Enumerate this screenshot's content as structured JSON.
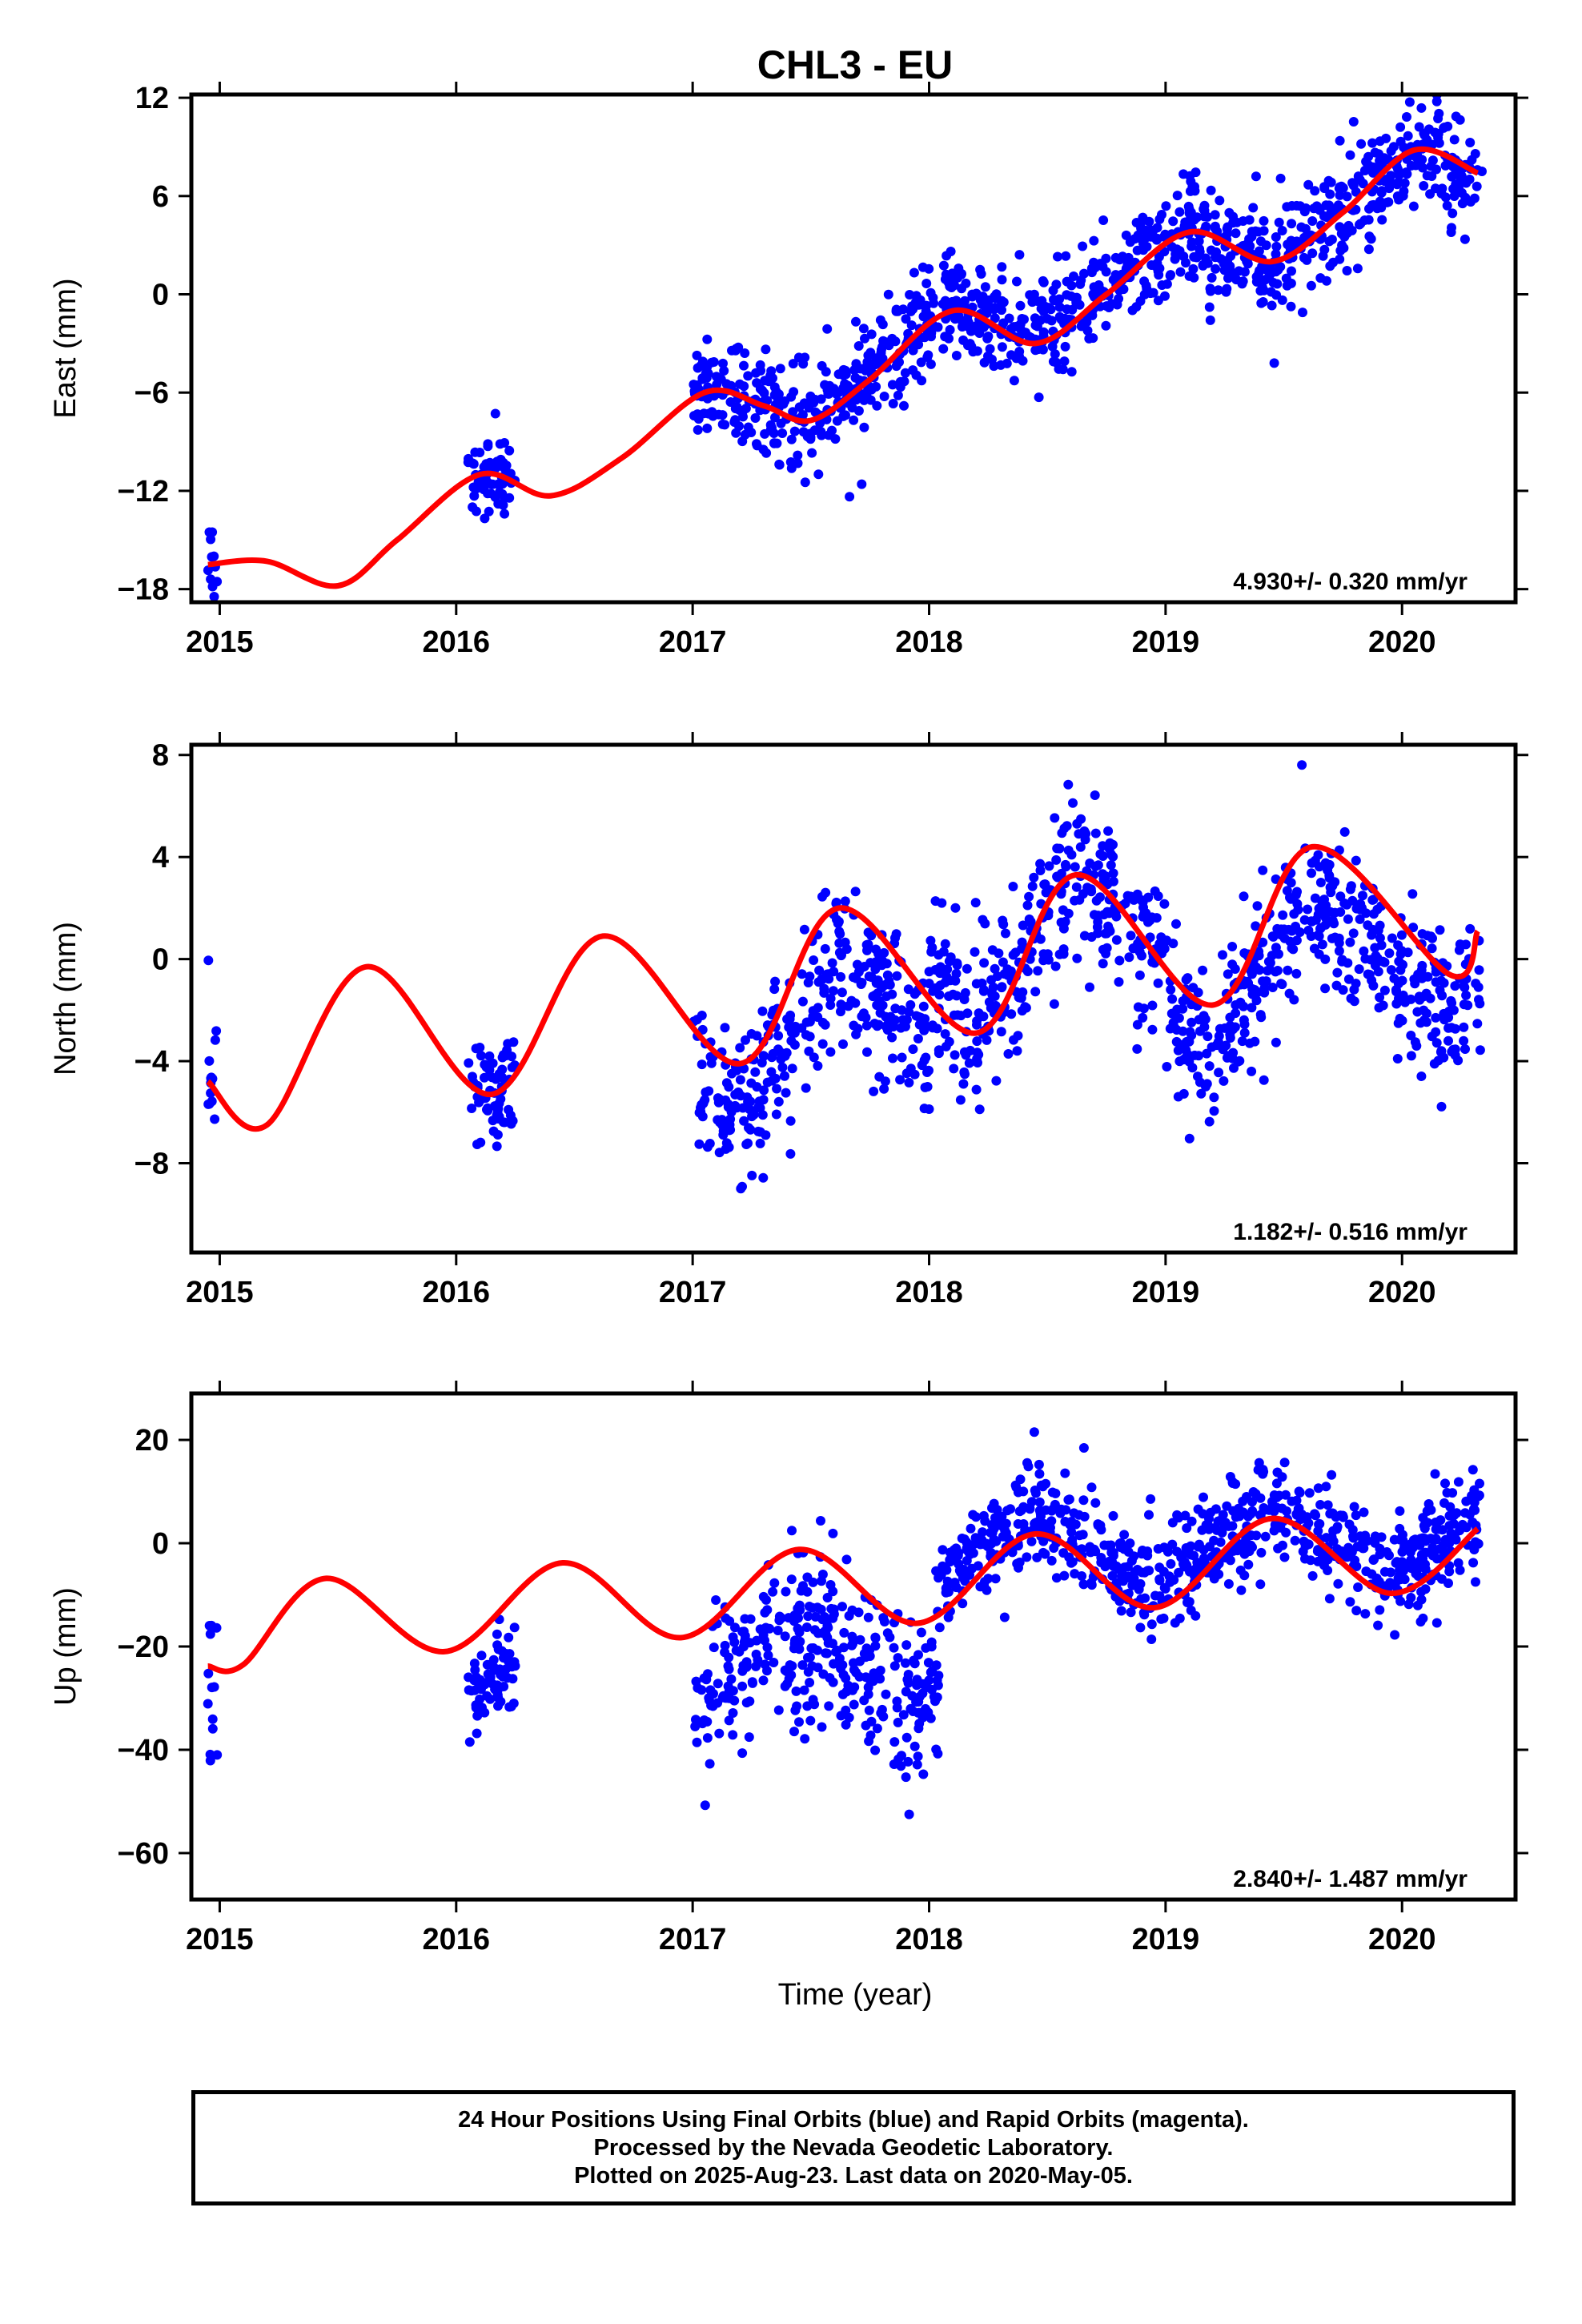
{
  "title": "CHL3 - EU",
  "xlabel": "Time (year)",
  "colors": {
    "points": "#0000ff",
    "fit": "#ff0000",
    "frame": "#000000"
  },
  "notes": [
    "24 Hour Positions Using Final Orbits (blue) and Rapid Orbits (magenta).",
    "Processed by the Nevada Geodetic Laboratory.",
    "Plotted on 2025-Aug-23. Last data on 2020-May-05."
  ],
  "chart_data": [
    {
      "type": "scatter",
      "ylabel": "East (mm)",
      "xlim": [
        2014.88,
        2020.48
      ],
      "ylim": [
        -18.8,
        12.2
      ],
      "xticks": [
        "2015",
        "2016",
        "2017",
        "2018",
        "2019",
        "2020"
      ],
      "yticks": [
        12,
        6,
        0,
        -6,
        -12,
        -18
      ],
      "rate_label": "4.930+/- 0.320 mm/yr",
      "grid": false,
      "segments": [
        {
          "t0": 2014.95,
          "t1": 2014.99,
          "approx_mean": -16.5,
          "spread": 1.5
        },
        {
          "t0": 2016.05,
          "t1": 2016.25,
          "approx_mean": -11.0,
          "spread": 1.3
        },
        {
          "t0": 2017.0,
          "t1": 2018.0,
          "approx_mean": -7.0,
          "spread": 1.6
        },
        {
          "t0": 2018.0,
          "t1": 2019.0,
          "approx_mean": -1.5,
          "spread": 1.6
        },
        {
          "t0": 2019.0,
          "t1": 2020.34,
          "approx_mean": 4.0,
          "spread": 1.6
        }
      ],
      "fit": {
        "x": [
          2014.95,
          2015.2,
          2015.5,
          2015.75,
          2016.1,
          2016.4,
          2016.7,
          2017.05,
          2017.3,
          2017.5,
          2017.75,
          2018.1,
          2018.45,
          2018.75,
          2019.1,
          2019.45,
          2019.75,
          2020.05,
          2020.32
        ],
        "y": [
          -16.5,
          -16.3,
          -17.8,
          -15.0,
          -11.0,
          -12.3,
          -10.0,
          -6.0,
          -6.8,
          -7.7,
          -5.2,
          -1.0,
          -3.0,
          0.0,
          3.8,
          2.0,
          5.0,
          8.8,
          7.4
        ]
      }
    },
    {
      "type": "scatter",
      "ylabel": "North (mm)",
      "xlim": [
        2014.88,
        2020.48
      ],
      "ylim": [
        -11.5,
        8.4
      ],
      "xticks": [
        "2015",
        "2016",
        "2017",
        "2018",
        "2019",
        "2020"
      ],
      "yticks": [
        8,
        4,
        0,
        -4,
        -8
      ],
      "rate_label": "1.182+/- 0.516 mm/yr",
      "grid": false,
      "segments": [
        {
          "t0": 2014.95,
          "t1": 2014.99,
          "approx_mean": -5.0,
          "spread": 1.4
        },
        {
          "t0": 2016.05,
          "t1": 2016.25,
          "approx_mean": -6.0,
          "spread": 1.2
        },
        {
          "t0": 2017.0,
          "t1": 2018.0,
          "approx_mean": -3.0,
          "spread": 1.5
        },
        {
          "t0": 2018.0,
          "t1": 2019.0,
          "approx_mean": 2.0,
          "spread": 1.5
        },
        {
          "t0": 2019.0,
          "t1": 2020.34,
          "approx_mean": 1.0,
          "spread": 1.5
        }
      ],
      "fit": {
        "x": [
          2014.95,
          2015.2,
          2015.62,
          2016.15,
          2016.62,
          2017.2,
          2017.62,
          2018.2,
          2018.62,
          2019.2,
          2019.62,
          2020.2,
          2020.32
        ],
        "y": [
          -4.8,
          -6.5,
          -0.3,
          -5.3,
          0.9,
          -4.1,
          2.0,
          -2.9,
          3.3,
          -1.8,
          4.4,
          -0.6,
          1.1
        ]
      }
    },
    {
      "type": "scatter",
      "ylabel": "Up (mm)",
      "xlim": [
        2014.88,
        2020.48
      ],
      "ylim": [
        -69.0,
        29.0
      ],
      "xticks": [
        "2015",
        "2016",
        "2017",
        "2018",
        "2019",
        "2020"
      ],
      "yticks": [
        20,
        0,
        -20,
        -40,
        -60
      ],
      "rate_label": "2.840+/- 1.487 mm/yr",
      "grid": false,
      "segments": [
        {
          "t0": 2014.95,
          "t1": 2014.99,
          "approx_mean": -35.0,
          "spread": 10.0
        },
        {
          "t0": 2016.05,
          "t1": 2016.25,
          "approx_mean": -36.0,
          "spread": 4.0
        },
        {
          "t0": 2017.0,
          "t1": 2018.05,
          "approx_mean": -28.0,
          "spread": 8.0
        },
        {
          "t0": 2018.05,
          "t1": 2019.0,
          "approx_mean": 7.0,
          "spread": 5.0
        },
        {
          "t0": 2019.0,
          "t1": 2020.34,
          "approx_mean": 3.0,
          "spread": 5.0
        }
      ],
      "fit": {
        "x": [
          2014.95,
          2015.1,
          2015.45,
          2015.95,
          2016.45,
          2016.95,
          2017.45,
          2017.95,
          2018.45,
          2018.95,
          2019.45,
          2019.95,
          2020.32
        ],
        "y": [
          -23.8,
          -23.5,
          -6.8,
          -21.0,
          -3.8,
          -18.3,
          -1.2,
          -15.5,
          1.8,
          -12.5,
          4.8,
          -9.7,
          2.8
        ]
      }
    }
  ]
}
